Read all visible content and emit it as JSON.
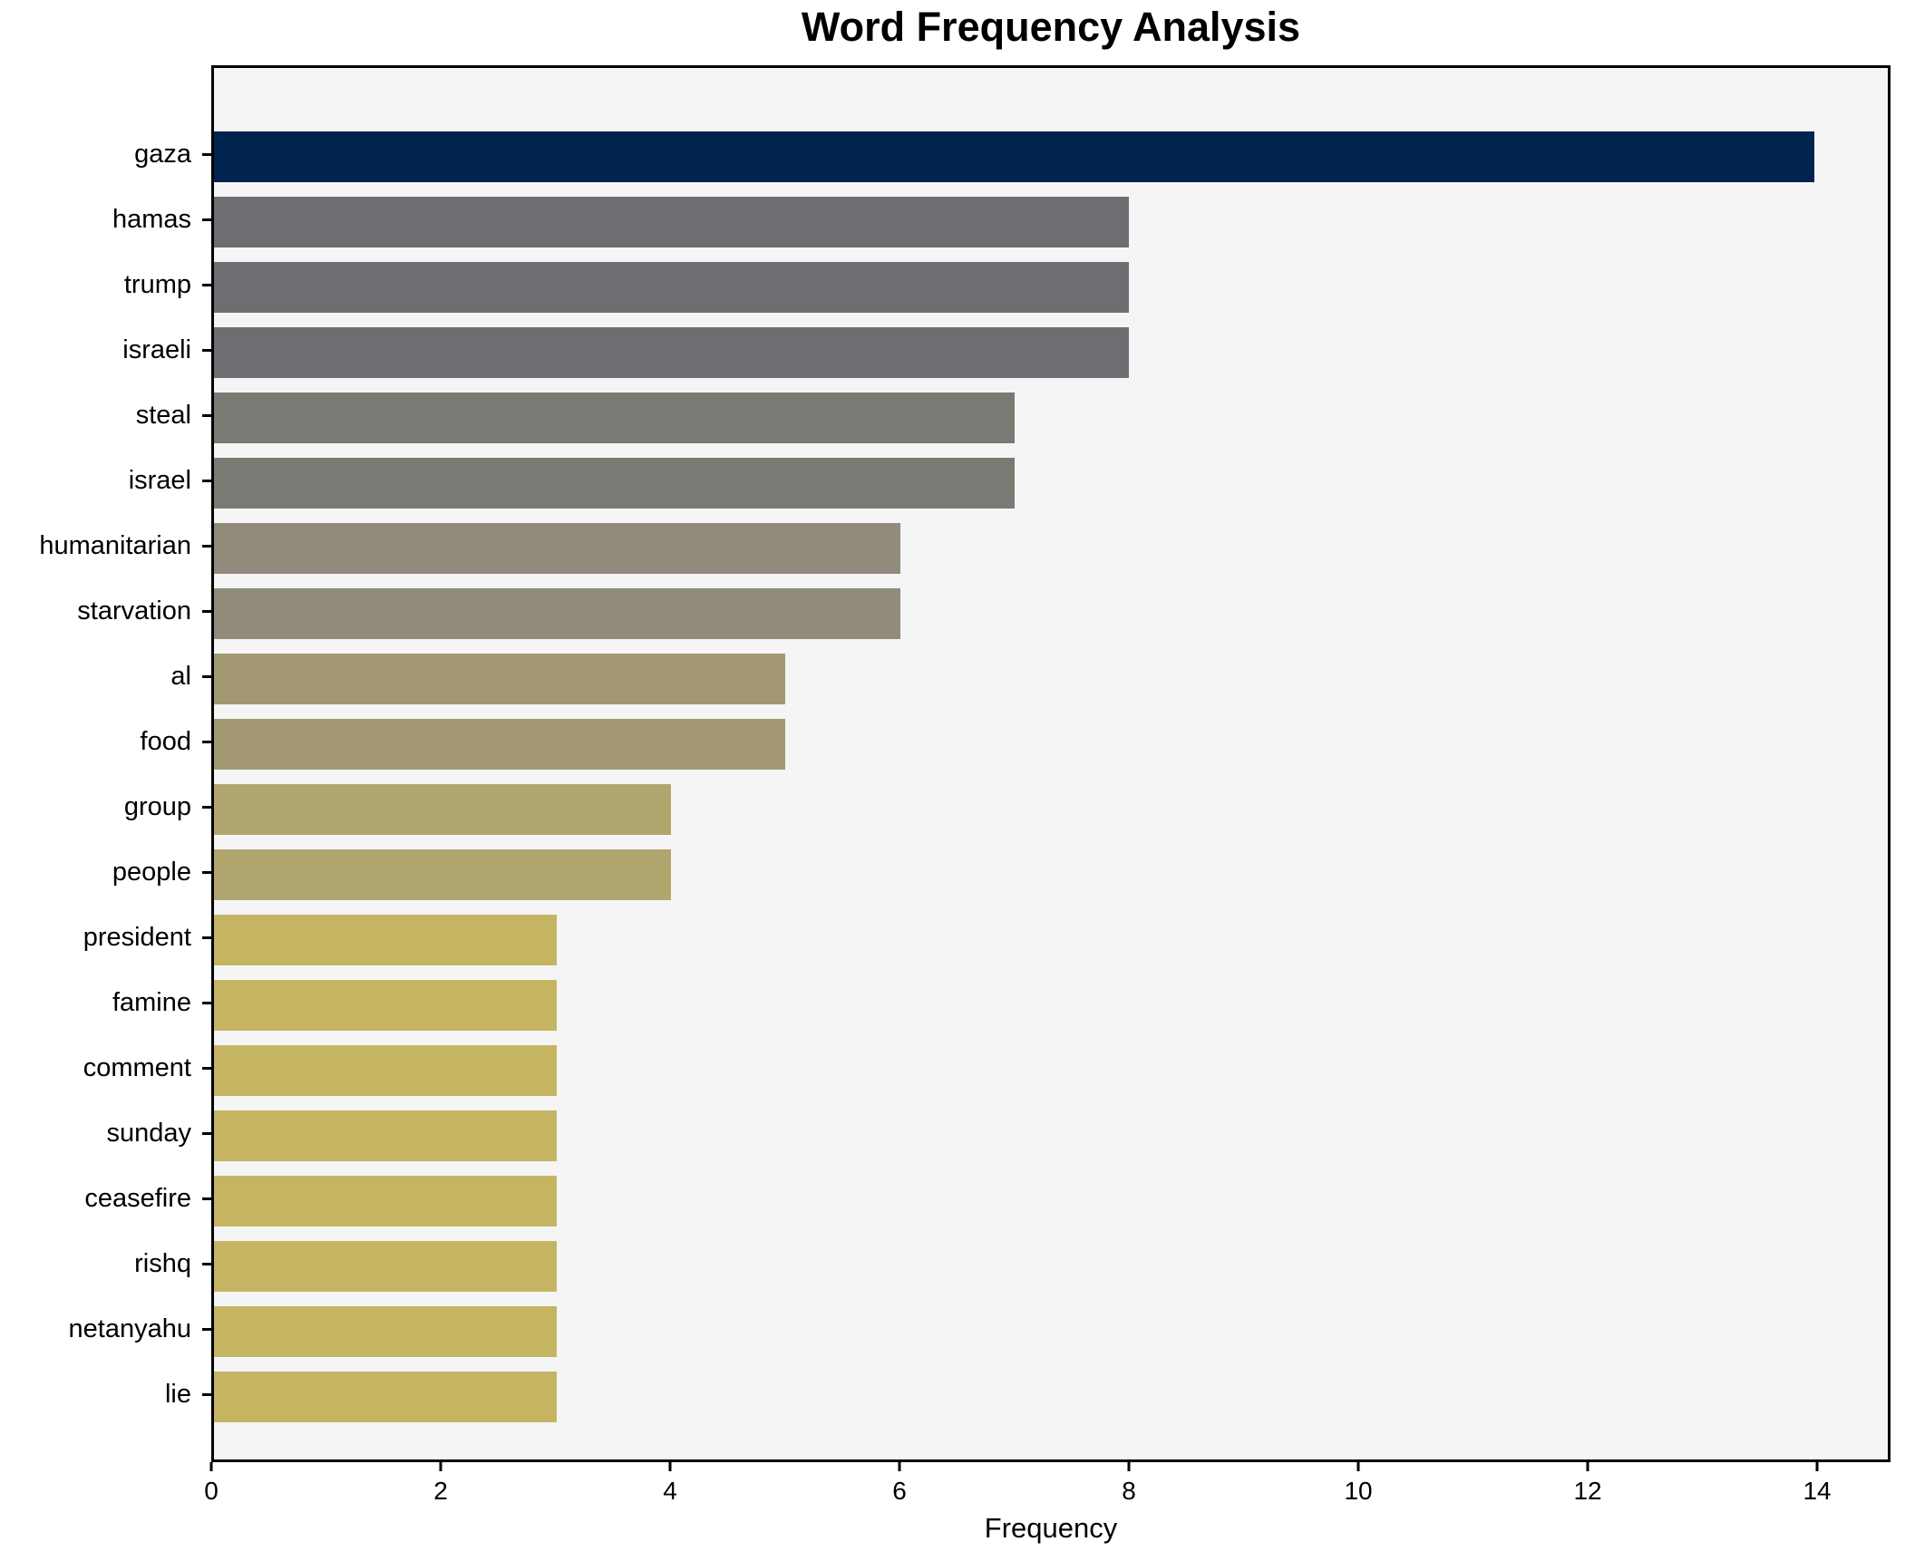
{
  "title": "Word Frequency Analysis",
  "chart_data": {
    "type": "bar",
    "orientation": "horizontal",
    "title": "Word Frequency Analysis",
    "xlabel": "Frequency",
    "ylabel": "",
    "categories": [
      "gaza",
      "hamas",
      "trump",
      "israeli",
      "steal",
      "israel",
      "humanitarian",
      "starvation",
      "al",
      "food",
      "group",
      "people",
      "president",
      "famine",
      "comment",
      "sunday",
      "ceasefire",
      "rishq",
      "netanyahu",
      "lie"
    ],
    "values": [
      14,
      8,
      8,
      8,
      7,
      7,
      6,
      6,
      5,
      5,
      4,
      4,
      3,
      3,
      3,
      3,
      3,
      3,
      3,
      3
    ],
    "bar_colors": [
      "#01244f",
      "#6e6d71",
      "#6e6d71",
      "#6e6d71",
      "#7b7973",
      "#7b7973",
      "#908b7a",
      "#908b7a",
      "#a29972",
      "#a29972",
      "#b1a76e",
      "#b1a76e",
      "#c5b563",
      "#c5b563",
      "#c5b563",
      "#c5b563",
      "#c5b563",
      "#c5b563",
      "#c5b563",
      "#c5b563"
    ],
    "xlim": [
      0,
      14.64
    ],
    "x_ticks": [
      0,
      2,
      4,
      6,
      8,
      10,
      12,
      14
    ],
    "grid": false,
    "legend": null,
    "plot_bg": "#f5f5f5",
    "figure_bg": "#ffffff",
    "spine_color": "#000000"
  }
}
